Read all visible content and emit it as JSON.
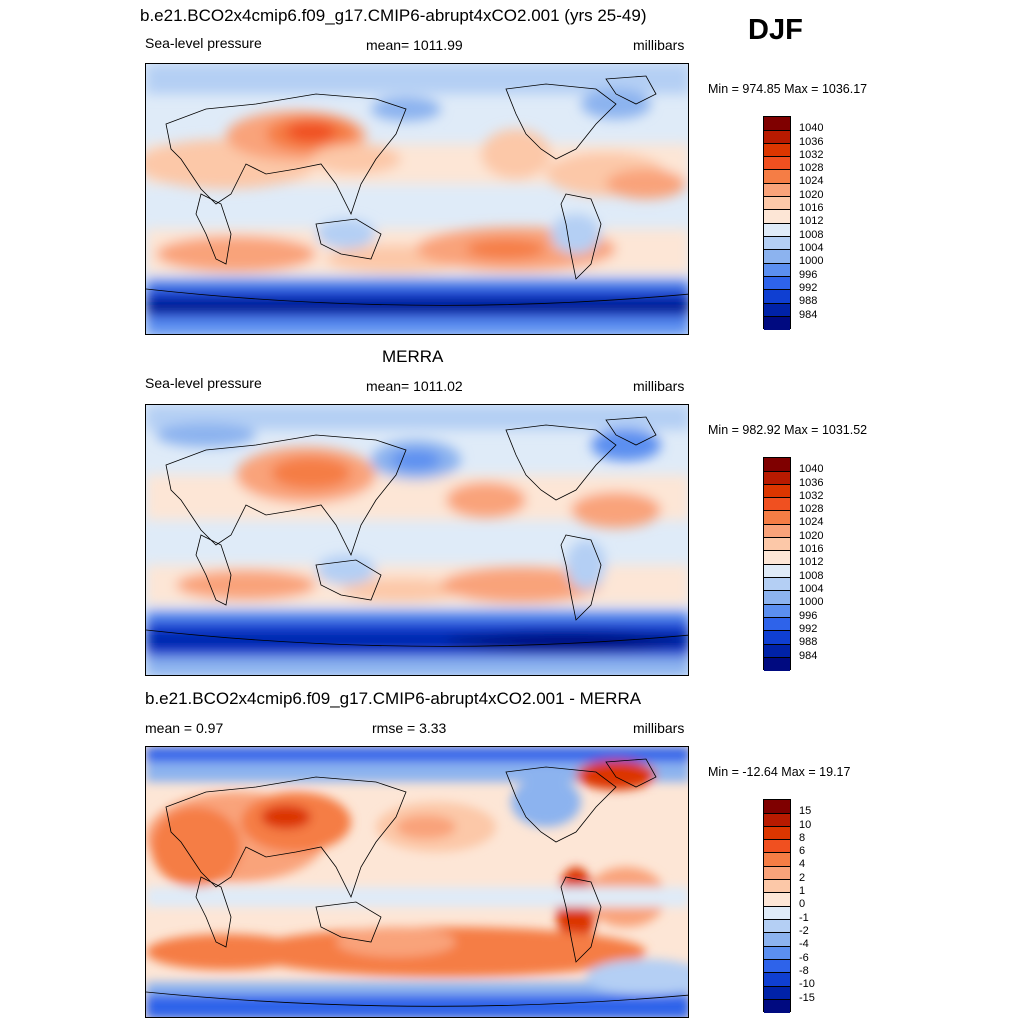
{
  "season": "DJF",
  "panels": [
    {
      "title": "b.e21.BCO2x4cmip6.f09_g17.CMIP6-abrupt4xCO2.001 (yrs 25-49)",
      "left": "Sea-level pressure",
      "center": "mean= 1011.99",
      "right": "millibars",
      "minmax": "Min = 974.85 Max = 1036.17",
      "colorbar": {
        "labels": [
          "1040",
          "1036",
          "1032",
          "1028",
          "1024",
          "1020",
          "1016",
          "1012",
          "1008",
          "1004",
          "1000",
          "996",
          "992",
          "988",
          "984"
        ],
        "colors": [
          "#7f0000",
          "#b81a00",
          "#dc3600",
          "#f05020",
          "#f57d45",
          "#f9a37a",
          "#fcc8a8",
          "#fde6d6",
          "#dfebf8",
          "#b4cff4",
          "#8cb3ef",
          "#5b8ff0",
          "#2e63ea",
          "#0f3fd2",
          "#0022a8",
          "#000a80"
        ]
      }
    },
    {
      "title": "MERRA",
      "left": "Sea-level pressure",
      "center": "mean= 1011.02",
      "right": "millibars",
      "minmax": "Min = 982.92 Max = 1031.52",
      "colorbar": {
        "labels": [
          "1040",
          "1036",
          "1032",
          "1028",
          "1024",
          "1020",
          "1016",
          "1012",
          "1008",
          "1004",
          "1000",
          "996",
          "992",
          "988",
          "984"
        ],
        "colors": [
          "#7f0000",
          "#b81a00",
          "#dc3600",
          "#f05020",
          "#f57d45",
          "#f9a37a",
          "#fcc8a8",
          "#fde6d6",
          "#dfebf8",
          "#b4cff4",
          "#8cb3ef",
          "#5b8ff0",
          "#2e63ea",
          "#0f3fd2",
          "#0022a8",
          "#000a80"
        ]
      }
    },
    {
      "title": "b.e21.BCO2x4cmip6.f09_g17.CMIP6-abrupt4xCO2.001 - MERRA",
      "left": "mean =   0.97",
      "center": "rmse =   3.33",
      "right": "millibars",
      "minmax": "Min = -12.64 Max =  19.17",
      "colorbar": {
        "labels": [
          "15",
          "10",
          "8",
          "6",
          "4",
          "2",
          "1",
          "0",
          "-1",
          "-2",
          "-4",
          "-6",
          "-8",
          "-10",
          "-15"
        ],
        "colors": [
          "#7f0000",
          "#b81a00",
          "#dc3600",
          "#f05020",
          "#f57d45",
          "#f9a37a",
          "#fcc8a8",
          "#fde6d6",
          "#dfebf8",
          "#b4cff4",
          "#8cb3ef",
          "#5b8ff0",
          "#2e63ea",
          "#0f3fd2",
          "#0022a8",
          "#000a80"
        ]
      }
    }
  ]
}
